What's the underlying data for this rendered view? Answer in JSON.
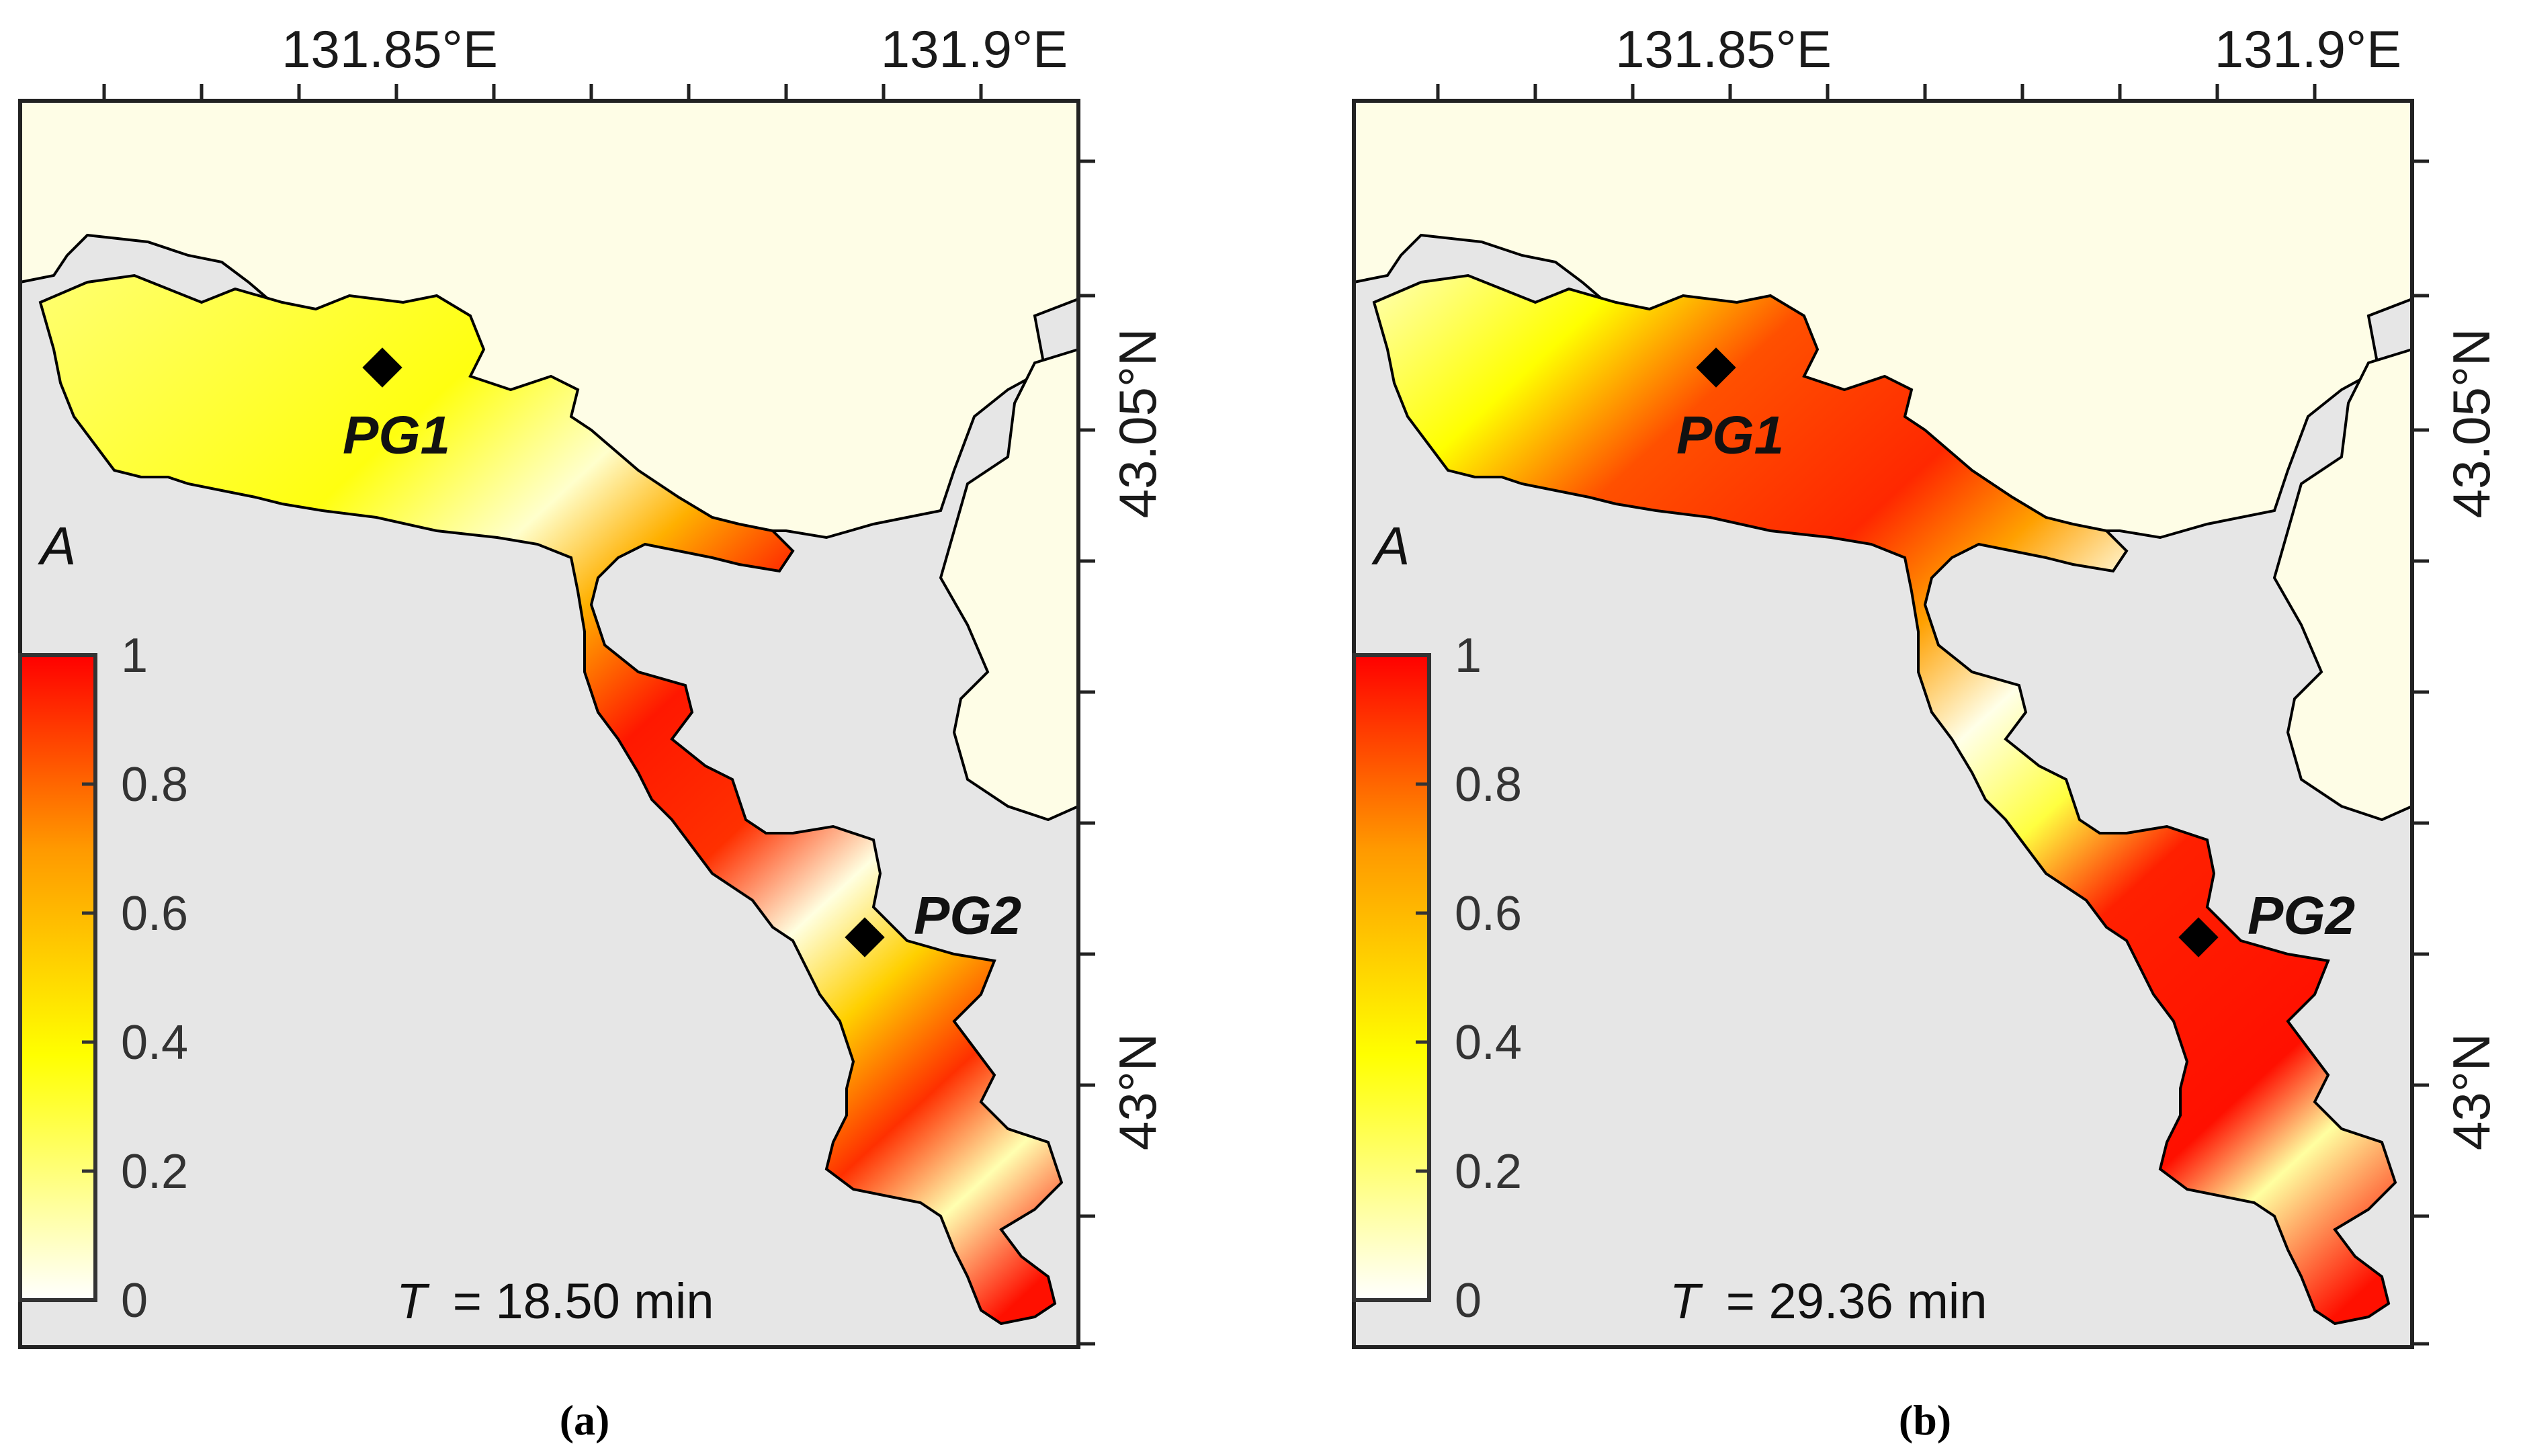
{
  "colorbar": {
    "symbol": "A",
    "ticks": [
      "1",
      "0.8",
      "0.6",
      "0.4",
      "0.2",
      "0"
    ],
    "colors": {
      "low": "#ffffff",
      "mid": "#ffff00",
      "high": "#ff0000"
    }
  },
  "colors": {
    "land": "#fefde6",
    "sea": "#e6e6e6",
    "frame": "#222222",
    "marker": "#000000"
  },
  "panels": [
    {
      "caption": "(a)",
      "lon_labels": [
        "131.85°E",
        "131.9°E"
      ],
      "lat_labels": [
        "43.05°N",
        "43°N"
      ],
      "stations": [
        {
          "name": "PG1",
          "A": 0.3
        },
        {
          "name": "PG2",
          "A": 0.15
        }
      ],
      "time_prefix": "T",
      "time_value": "= 18.50 min"
    },
    {
      "caption": "(b)",
      "lon_labels": [
        "131.85°E",
        "131.9°E"
      ],
      "lat_labels": [
        "43.05°N",
        "43°N"
      ],
      "stations": [
        {
          "name": "PG1",
          "A": 0.75
        },
        {
          "name": "PG2",
          "A": 0.95
        }
      ],
      "time_prefix": "T",
      "time_value": "= 29.36 min"
    }
  ]
}
